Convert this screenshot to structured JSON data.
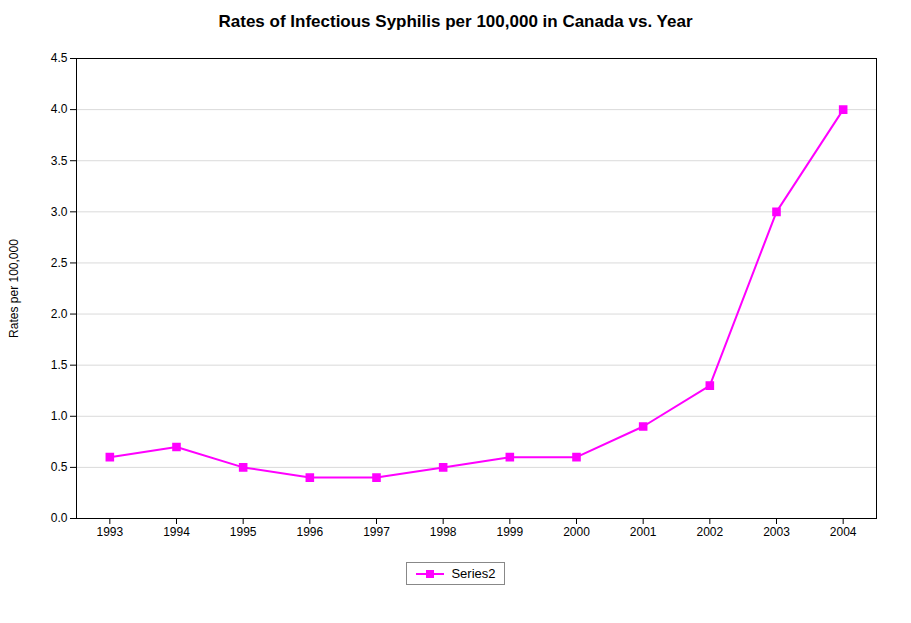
{
  "chart_data": {
    "type": "line",
    "title": "Rates of Infectious Syphilis per 100,000 in Canada vs. Year",
    "ylabel": "Rates per 100,000",
    "x": [
      1993,
      1994,
      1995,
      1996,
      1997,
      1998,
      1999,
      2000,
      2001,
      2002,
      2003,
      2004
    ],
    "series": [
      {
        "name": "Series2",
        "color": "#FF00FF",
        "marker": "square",
        "values": [
          0.6,
          0.7,
          0.5,
          0.4,
          0.4,
          0.5,
          0.6,
          0.6,
          0.9,
          1.3,
          3.0,
          4.0
        ]
      }
    ],
    "xlim": [
      1992.5,
      2004.5
    ],
    "xticks": [
      1993,
      1994,
      1995,
      1996,
      1997,
      1998,
      1999,
      2000,
      2001,
      2002,
      2003,
      2004
    ],
    "ylim": [
      0,
      4.5
    ],
    "yticks": [
      {
        "value": 0,
        "label": "0.0"
      },
      0.5,
      {
        "value": 1.0,
        "label": "1.0"
      },
      1.5,
      {
        "value": 2.0,
        "label": "2.0"
      },
      2.5,
      {
        "value": 3.0,
        "label": "3.0"
      },
      3.5,
      {
        "value": 4.0,
        "label": "4.0"
      },
      4.5
    ],
    "grid": "y",
    "legend": "bottom"
  }
}
